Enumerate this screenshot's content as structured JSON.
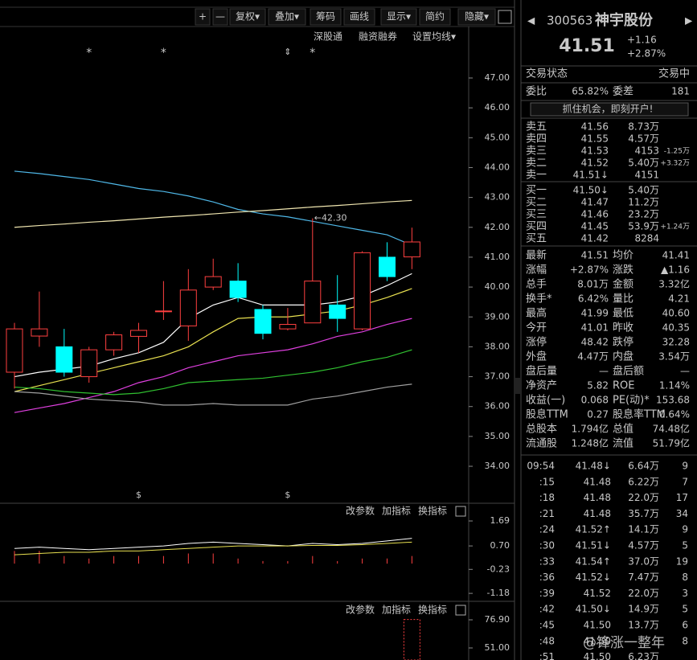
{
  "toolbar": [
    "+",
    "—",
    "复权▾",
    "叠加▾",
    "筹码",
    "画线",
    "显示▾",
    "简约",
    "隐藏▾"
  ],
  "subbar": [
    "深股通",
    "融资融券",
    "设置均线▾"
  ],
  "chart": {
    "type": "candlestick",
    "ylim": [
      32.79,
      48.13
    ],
    "yticks": [
      {
        "value": 47,
        "label": "47.00"
      },
      {
        "value": 46,
        "label": "46.00"
      },
      {
        "value": 45,
        "label": "45.00"
      },
      {
        "value": 44,
        "label": "44.00"
      },
      {
        "value": 43,
        "label": "43.00"
      },
      {
        "value": 42,
        "label": "42.00"
      },
      {
        "value": 41,
        "label": "41.00"
      },
      {
        "value": 40,
        "label": "40.00"
      },
      {
        "value": 39,
        "label": "39.00"
      },
      {
        "value": 38,
        "label": "38.00"
      },
      {
        "value": 37,
        "label": "37.00"
      },
      {
        "value": 36,
        "label": "36.00"
      },
      {
        "value": 35,
        "label": "35.00"
      },
      {
        "value": 34,
        "label": "34.00"
      }
    ],
    "open": [
      37.15,
      38.36,
      38.0,
      37.0,
      37.9,
      38.35,
      39.2,
      38.7,
      40.0,
      40.2,
      39.25,
      38.6,
      38.8,
      39.4,
      38.6,
      41.0,
      41.01
    ],
    "close": [
      38.6,
      38.6,
      37.15,
      37.9,
      38.4,
      38.55,
      39.2,
      39.9,
      40.35,
      39.65,
      38.45,
      38.75,
      40.2,
      38.95,
      41.15,
      40.35,
      41.51
    ],
    "high": [
      38.8,
      39.85,
      38.6,
      38.0,
      38.5,
      38.8,
      40.2,
      40.6,
      40.95,
      40.8,
      39.4,
      39.3,
      42.3,
      40.4,
      41.2,
      41.5,
      41.99
    ],
    "low": [
      36.6,
      38.0,
      37.0,
      36.8,
      37.7,
      37.8,
      38.9,
      38.2,
      39.9,
      39.5,
      38.25,
      38.55,
      38.8,
      38.5,
      38.55,
      40.2,
      40.6
    ],
    "high_label": "←42.30",
    "high_index": 12,
    "star_label": "*",
    "star_indices": [
      3,
      6,
      12
    ],
    "ma": [
      {
        "color": "#4fb8e8",
        "values": [
          43.88,
          43.8,
          43.7,
          43.6,
          43.45,
          43.3,
          43.2,
          43.05,
          42.85,
          42.6,
          42.45,
          42.35,
          42.2,
          42.05,
          41.9,
          41.75,
          41.4
        ]
      },
      {
        "color": "#f0e6b0",
        "values": [
          42.0,
          42.06,
          42.11,
          42.17,
          42.22,
          42.28,
          42.34,
          42.39,
          42.45,
          42.51,
          42.56,
          42.62,
          42.68,
          42.73,
          42.79,
          42.85,
          42.9
        ]
      },
      {
        "color": "#ffffff",
        "values": [
          37.0,
          37.15,
          37.25,
          37.35,
          37.6,
          37.8,
          38.15,
          38.95,
          39.4,
          39.65,
          39.4,
          39.4,
          39.4,
          39.5,
          39.7,
          40.05,
          40.45
        ]
      },
      {
        "color": "#e8e050",
        "values": [
          36.5,
          36.7,
          36.9,
          37.1,
          37.3,
          37.5,
          37.7,
          38.0,
          38.5,
          38.95,
          39.0,
          39.0,
          39.1,
          39.2,
          39.4,
          39.65,
          39.95
        ]
      },
      {
        "color": "#e040e0",
        "values": [
          35.8,
          35.95,
          36.1,
          36.3,
          36.5,
          36.8,
          37.0,
          37.3,
          37.5,
          37.7,
          37.8,
          37.9,
          38.1,
          38.35,
          38.5,
          38.75,
          38.95
        ]
      },
      {
        "color": "#30c030",
        "values": [
          36.65,
          36.6,
          36.5,
          36.45,
          36.4,
          36.45,
          36.6,
          36.8,
          36.85,
          36.9,
          36.95,
          37.05,
          37.15,
          37.3,
          37.5,
          37.65,
          37.9
        ]
      },
      {
        "color": "#a0a0a0",
        "values": [
          36.5,
          36.45,
          36.35,
          36.25,
          36.2,
          36.15,
          36.05,
          36.05,
          36.1,
          36.05,
          36.05,
          36.05,
          36.25,
          36.35,
          36.5,
          36.65,
          36.75
        ]
      }
    ]
  },
  "panel1": {
    "buttons": [
      "改参数",
      "加指标",
      "换指标"
    ],
    "ylim": [
      -1.4,
      2.36
    ],
    "yticks": [
      {
        "value": 1.69,
        "label": "1.69"
      },
      {
        "value": 0.7,
        "label": "0.70"
      },
      {
        "value": -0.23,
        "label": "-0.23"
      },
      {
        "value": -1.18,
        "label": "-1.18"
      }
    ],
    "lines": [
      {
        "color": "#ffffff",
        "values": [
          0.6,
          0.65,
          0.6,
          0.55,
          0.6,
          0.65,
          0.7,
          0.8,
          0.85,
          0.8,
          0.75,
          0.7,
          0.8,
          0.75,
          0.8,
          0.9,
          1.0
        ]
      },
      {
        "color": "#e8e050",
        "values": [
          0.35,
          0.4,
          0.45,
          0.45,
          0.5,
          0.5,
          0.55,
          0.6,
          0.65,
          0.7,
          0.7,
          0.7,
          0.72,
          0.72,
          0.75,
          0.8,
          0.85
        ]
      }
    ],
    "bars": [
      0.5,
      0.5,
      0.3,
      0.2,
      0.3,
      0.3,
      0.3,
      0.4,
      0.4,
      0.2,
      0.1,
      0.1,
      0.3,
      0.1,
      0.2,
      0.2,
      0.3
    ]
  },
  "panel2": {
    "buttons": [
      "改参数",
      "加指标",
      "换指标"
    ],
    "ylim": [
      39.9,
      92.44
    ],
    "yticks": [
      {
        "value": 76.9,
        "label": "76.90"
      },
      {
        "value": 51,
        "label": "51.00"
      }
    ],
    "bar_index": 16,
    "bar": 77.2
  },
  "quote": {
    "code": "300563",
    "name": "神宇股份",
    "price": "41.51",
    "change": "+1.16",
    "pct": "+2.87%",
    "status": [
      "交易状态",
      "交易中"
    ],
    "ratio": [
      "委比",
      "65.82%",
      "委差",
      "181"
    ],
    "promo": "抓住机会，即刻开户!",
    "book": [
      [
        "卖五",
        "41.56",
        "8.73万",
        ""
      ],
      [
        "卖四",
        "41.55",
        "4.57万",
        ""
      ],
      [
        "卖三",
        "41.53",
        "4153",
        "-1.25万"
      ],
      [
        "卖二",
        "41.52",
        "5.40万",
        "+3.32万"
      ],
      [
        "卖一",
        "41.51↓",
        "4151",
        ""
      ],
      [
        "买一",
        "41.50↓",
        "5.40万",
        ""
      ],
      [
        "买二",
        "41.47",
        "11.2万",
        ""
      ],
      [
        "买三",
        "41.46",
        "23.2万",
        ""
      ],
      [
        "买四",
        "41.45",
        "53.9万",
        "+1.24万"
      ],
      [
        "买五",
        "41.42",
        "8284",
        ""
      ]
    ],
    "stats": [
      [
        "最新",
        "41.51",
        "均价",
        "41.41"
      ],
      [
        "涨幅",
        "+2.87%",
        "涨跌",
        "▲1.16"
      ],
      [
        "总手",
        "8.01万",
        "金额",
        "3.32亿"
      ],
      [
        "换手*",
        "6.42%",
        "量比",
        "4.21"
      ],
      [
        "最高",
        "41.99",
        "最低",
        "40.60"
      ],
      [
        "今开",
        "41.01",
        "昨收",
        "40.35"
      ],
      [
        "涨停",
        "48.42",
        "跌停",
        "32.28"
      ],
      [
        "外盘",
        "4.47万",
        "内盘",
        "3.54万"
      ],
      [
        "盘后量",
        "—",
        "盘后额",
        "—"
      ],
      [
        "净资产",
        "5.82",
        "ROE",
        "1.14%"
      ],
      [
        "收益(一)",
        "0.068",
        "PE(动)*",
        "153.68"
      ],
      [
        "股息TTM",
        "0.27",
        "股息率TTM",
        "0.64%"
      ],
      [
        "总股本",
        "1.794亿",
        "总值",
        "74.48亿"
      ],
      [
        "流通股",
        "1.248亿",
        "流值",
        "51.79亿"
      ]
    ],
    "stat_colors": [
      [
        "#ff5050",
        "#ff5050"
      ],
      [
        "#ff5050",
        "#ff5050"
      ],
      [
        "#ffffff",
        "#00e0e0"
      ],
      [
        "#ffffff",
        "#ffff40"
      ],
      [
        "#ff5050",
        "#ff5050"
      ],
      [
        "#ff5050",
        "#ffffff"
      ],
      [
        "#ff5050",
        "#30e030"
      ],
      [
        "#ff5050",
        "#30e030"
      ],
      [
        "#ffffff",
        "#ffffff"
      ],
      [
        "#ffffff",
        "#ffffff"
      ],
      [
        "#ffffff",
        "#ffffff"
      ],
      [
        "#ffffff",
        "#ffffff"
      ],
      [
        "#ffffff",
        "#ffffff"
      ],
      [
        "#ffffff",
        "#ffffff"
      ]
    ],
    "ticks": [
      [
        "09:54",
        "41.48↓",
        "6.64万",
        "9"
      ],
      [
        ":15",
        "41.48",
        "6.22万",
        "7"
      ],
      [
        ":18",
        "41.48",
        "22.0万",
        "17"
      ],
      [
        ":21",
        "41.48",
        "35.7万",
        "34"
      ],
      [
        ":24",
        "41.52↑",
        "14.1万",
        "9"
      ],
      [
        ":30",
        "41.51↓",
        "4.57万",
        "5"
      ],
      [
        ":33",
        "41.54↑",
        "37.0万",
        "19"
      ],
      [
        ":36",
        "41.52↓",
        "7.47万",
        "8"
      ],
      [
        ":39",
        "41.52",
        "22.0万",
        "3"
      ],
      [
        ":42",
        "41.50↓",
        "14.9万",
        "5"
      ],
      [
        ":45",
        "41.50",
        "13.7万",
        "6"
      ],
      [
        ":48",
        "41.50",
        "",
        "8"
      ],
      [
        ":51",
        "41.50",
        "6.23万",
        ""
      ]
    ],
    "watermark": "@锋涨一整年"
  }
}
